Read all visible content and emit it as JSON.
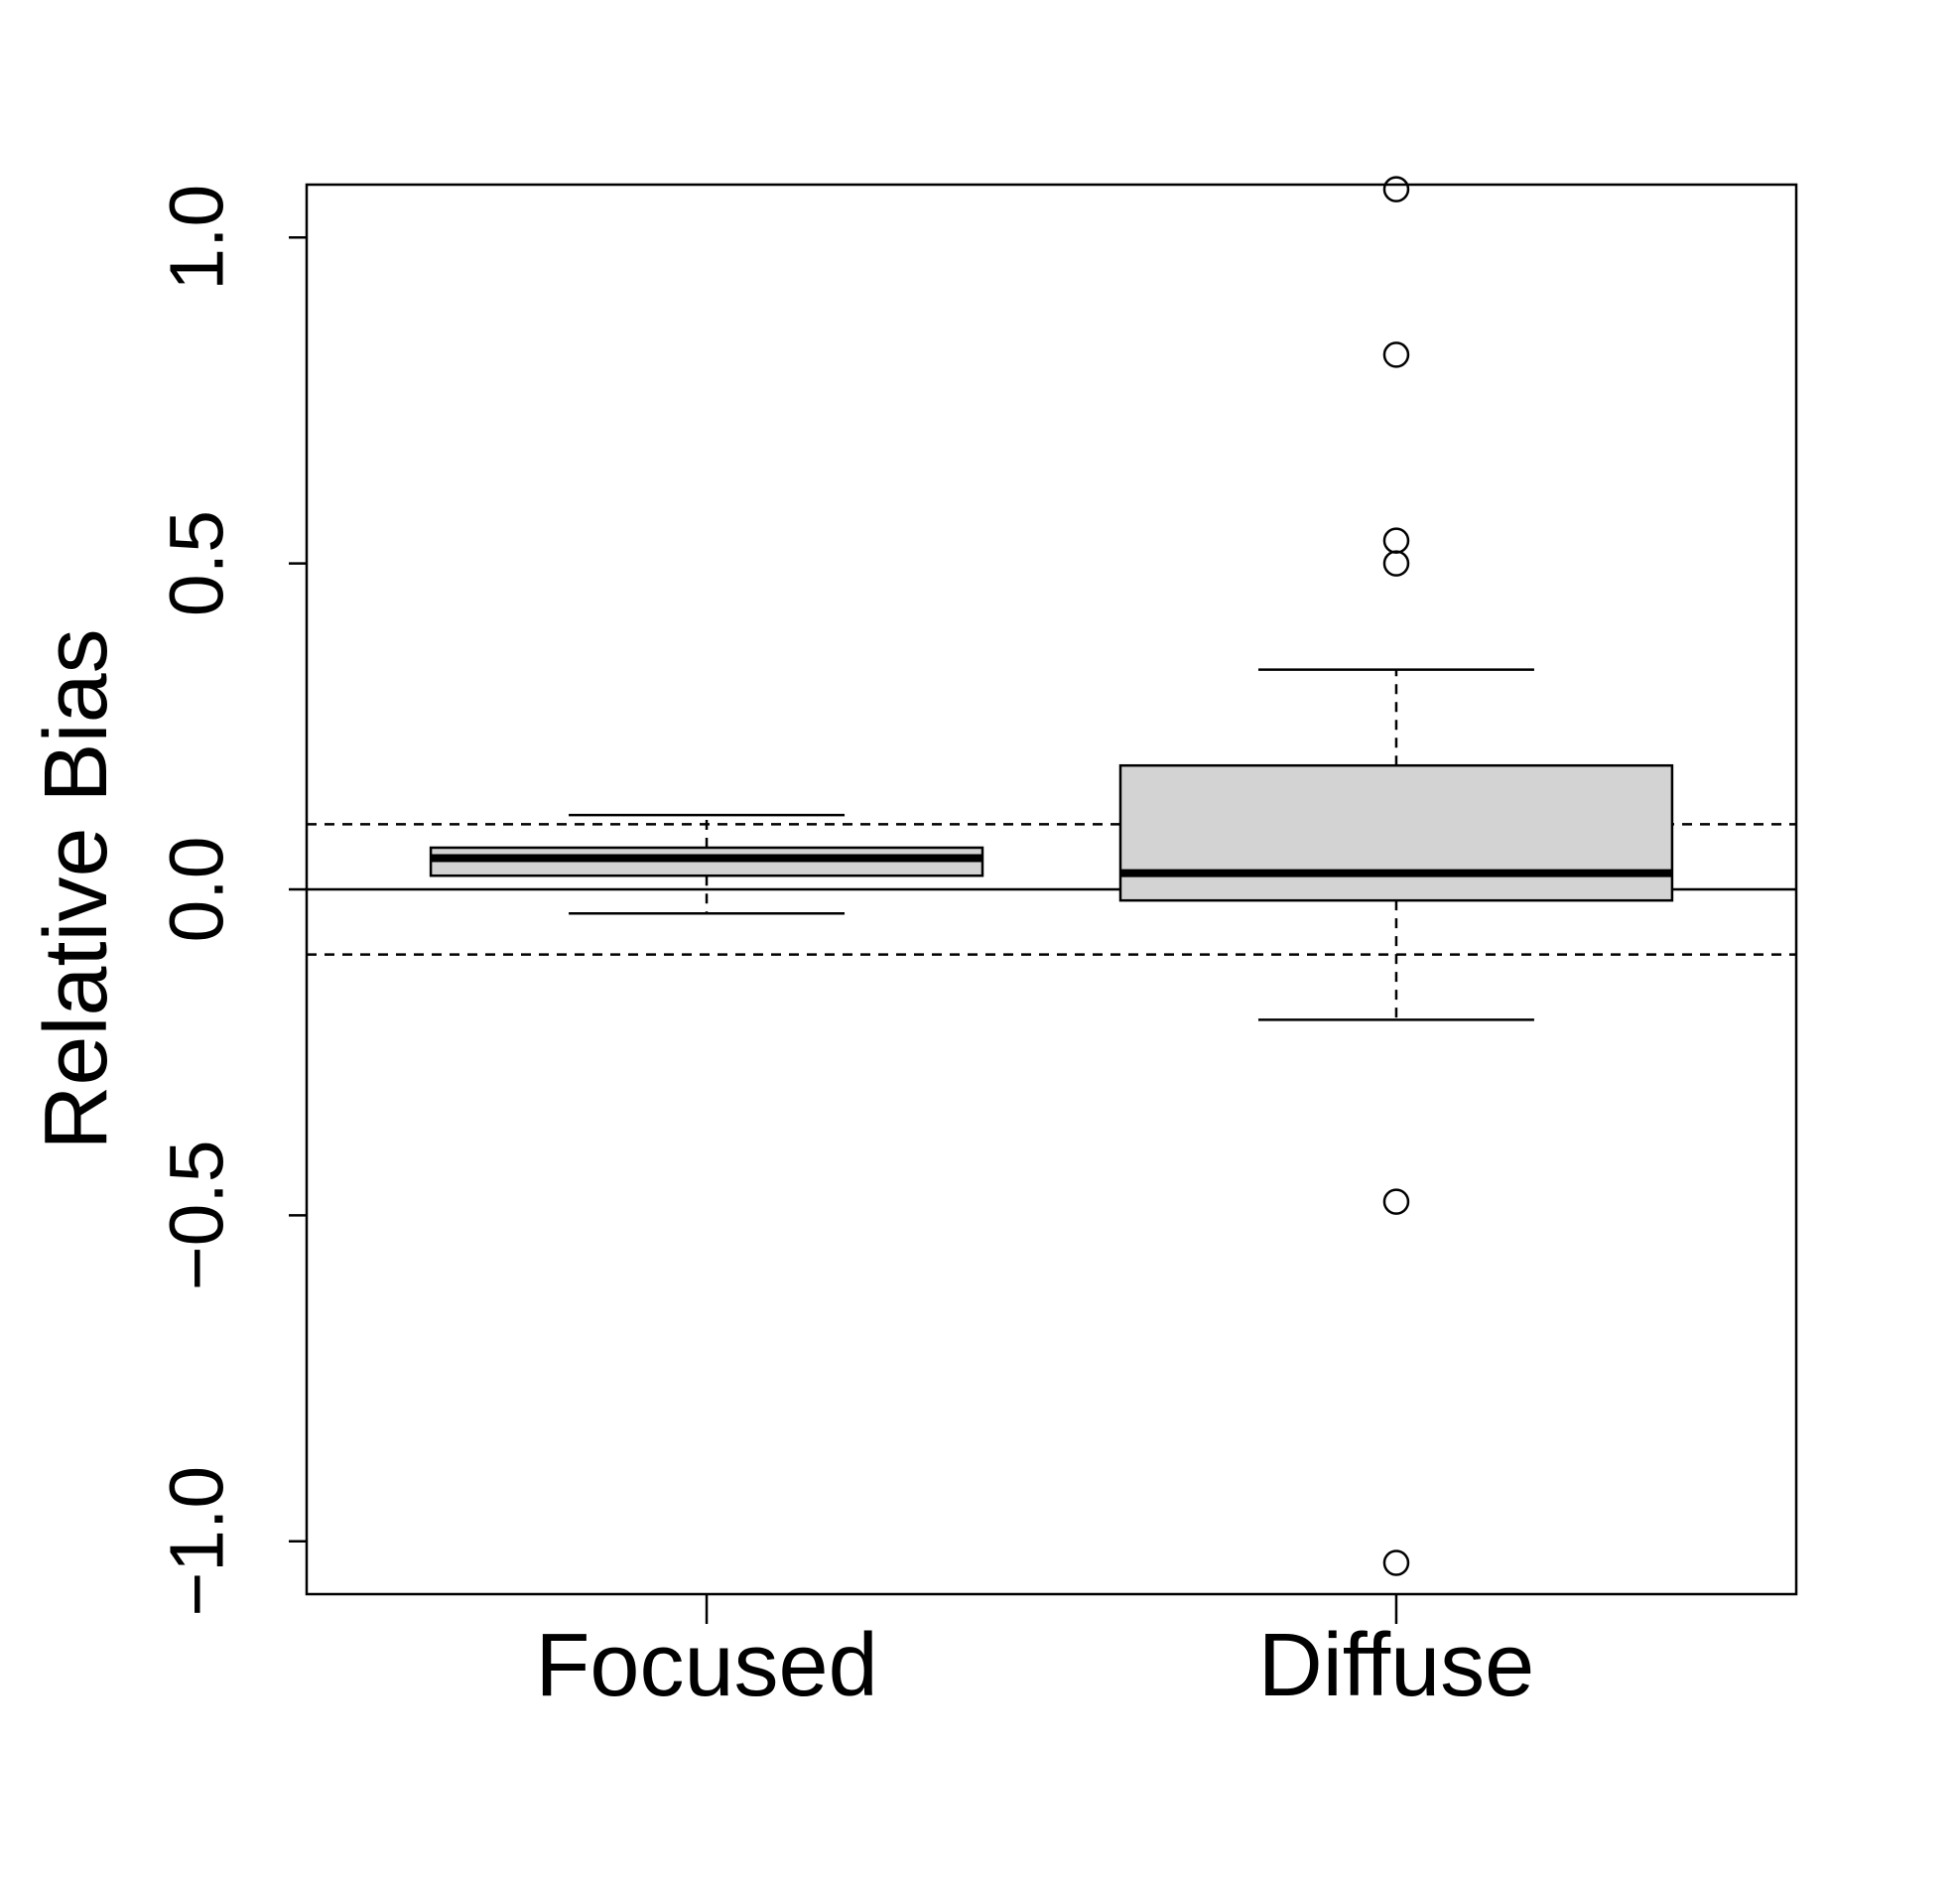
{
  "chart_data": {
    "type": "boxplot",
    "y_label": "Relative Bias",
    "categories": [
      "Focused",
      "Diffuse"
    ],
    "boxes": [
      {
        "whisker_low": -0.037,
        "q1": 0.021,
        "median": 0.048,
        "q3": 0.064,
        "whisker_high": 0.114,
        "outliers": []
      },
      {
        "whisker_low": -0.2,
        "q1": -0.017,
        "median": 0.025,
        "q3": 0.19,
        "whisker_high": 0.337,
        "outliers": [
          1.074,
          0.82,
          0.535,
          0.5,
          -0.479,
          -1.033
        ]
      }
    ],
    "color": "#d3d3d3",
    "ylim": [
      -1.081,
      1.081
    ],
    "yticks": [
      {
        "value": -1,
        "label": "−1.0"
      },
      {
        "value": -0.5,
        "label": "−0.5"
      },
      {
        "value": 0,
        "label": "0.0"
      },
      {
        "value": 0.5,
        "label": "0.5"
      },
      {
        "value": 1,
        "label": "1.0"
      }
    ],
    "reference_lines": [
      {
        "value": 0,
        "style": "solid"
      },
      {
        "value": 0.1,
        "style": "dashed"
      },
      {
        "value": -0.1,
        "style": "dashed"
      }
    ]
  }
}
